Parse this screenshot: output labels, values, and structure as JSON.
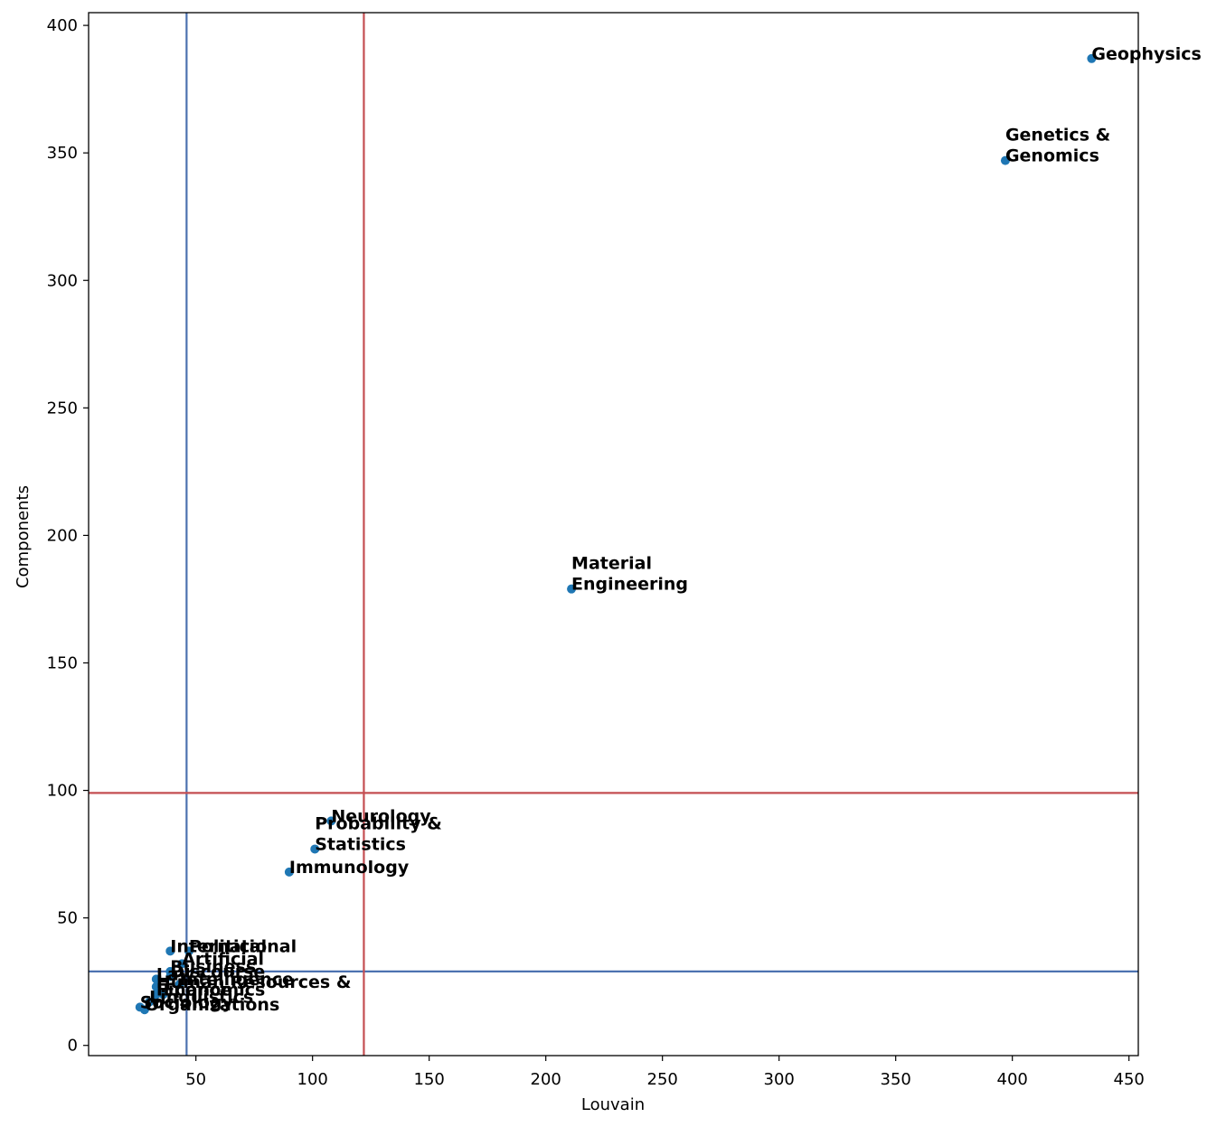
{
  "chart_data": {
    "type": "scatter",
    "title": "",
    "xlabel": "Louvain",
    "ylabel": "Components",
    "xlim": [
      4,
      454
    ],
    "ylim": [
      -4,
      405
    ],
    "xticks": [
      50,
      100,
      150,
      200,
      250,
      300,
      350,
      400,
      450
    ],
    "yticks": [
      0,
      50,
      100,
      150,
      200,
      250,
      300,
      350,
      400
    ],
    "grid": false,
    "point_color": "#1f77b4",
    "points": [
      {
        "x": 434,
        "y": 387,
        "label": [
          "Geophysics"
        ]
      },
      {
        "x": 397,
        "y": 347,
        "label": [
          "Genetics &",
          "Genomics"
        ]
      },
      {
        "x": 211,
        "y": 179,
        "label": [
          "Material",
          "Engineering"
        ]
      },
      {
        "x": 108,
        "y": 88,
        "label": [
          "Neurology"
        ]
      },
      {
        "x": 101,
        "y": 77,
        "label": [
          "Probability &",
          "Statistics"
        ]
      },
      {
        "x": 90,
        "y": 68,
        "label": [
          "Immunology"
        ]
      },
      {
        "x": 47,
        "y": 37,
        "label": [
          "Political"
        ]
      },
      {
        "x": 39,
        "y": 37,
        "label": [
          "International"
        ]
      },
      {
        "x": 44,
        "y": 32,
        "label": [
          "Artificial"
        ]
      },
      {
        "x": 39,
        "y": 29,
        "label": [
          "Business"
        ]
      },
      {
        "x": 39,
        "y": 27,
        "label": [
          "Discourse"
        ]
      },
      {
        "x": 33,
        "y": 26,
        "label": [
          "Law"
        ]
      },
      {
        "x": 43,
        "y": 24,
        "label": [
          "Intelligence"
        ]
      },
      {
        "x": 33,
        "y": 23,
        "label": [
          "Human Resources &"
        ]
      },
      {
        "x": 36,
        "y": 20,
        "label": [
          "Economics"
        ]
      },
      {
        "x": 33,
        "y": 20,
        "label": [
          "Finance"
        ]
      },
      {
        "x": 30,
        "y": 17,
        "label": [
          "Linguistics"
        ]
      },
      {
        "x": 26,
        "y": 15,
        "label": [
          "Sociology"
        ]
      },
      {
        "x": 28,
        "y": 14,
        "label": [
          "Organizations"
        ]
      }
    ],
    "reference_lines": [
      {
        "orientation": "vertical",
        "value": 46,
        "color": "#4c72b0"
      },
      {
        "orientation": "horizontal",
        "value": 29,
        "color": "#4c72b0"
      },
      {
        "orientation": "vertical",
        "value": 122,
        "color": "#c44e52"
      },
      {
        "orientation": "horizontal",
        "value": 99,
        "color": "#c44e52"
      }
    ]
  }
}
